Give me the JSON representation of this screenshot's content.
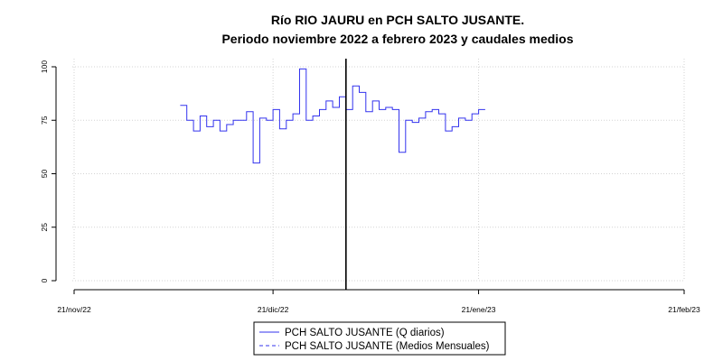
{
  "chart_data": {
    "type": "line",
    "title": "Río RIO JAURU en PCH SALTO JUSANTE.",
    "subtitle": "Periodo noviembre 2022 a febrero 2023 y caudales medios",
    "xlabel": "",
    "ylabel": "",
    "xlim": [
      "2022-11-21",
      "2023-02-21"
    ],
    "ylim": [
      0,
      100
    ],
    "x_ticks": [
      {
        "date": "2022-11-21",
        "label": "21/nov/22"
      },
      {
        "date": "2022-12-21",
        "label": "21/dic/22"
      },
      {
        "date": "2023-01-21",
        "label": "21/ene/23"
      },
      {
        "date": "2023-02-21",
        "label": "21/feb/23"
      }
    ],
    "y_ticks": [
      0,
      25,
      50,
      75,
      100
    ],
    "grid": true,
    "vertical_marker_date": "2023-01-01",
    "legend_position": "bottom",
    "series": [
      {
        "name": "PCH SALTO JUSANTE (Q diarios)",
        "color": "#3333ee",
        "style": "solid",
        "x": [
          "2022-12-07",
          "2022-12-08",
          "2022-12-09",
          "2022-12-10",
          "2022-12-11",
          "2022-12-12",
          "2022-12-13",
          "2022-12-14",
          "2022-12-15",
          "2022-12-16",
          "2022-12-17",
          "2022-12-18",
          "2022-12-19",
          "2022-12-20",
          "2022-12-21",
          "2022-12-22",
          "2022-12-23",
          "2022-12-24",
          "2022-12-25",
          "2022-12-26",
          "2022-12-27",
          "2022-12-28",
          "2022-12-29",
          "2022-12-30",
          "2022-12-31",
          "2023-01-01",
          "2023-01-02",
          "2023-01-03",
          "2023-01-04",
          "2023-01-05",
          "2023-01-06",
          "2023-01-07",
          "2023-01-08",
          "2023-01-09",
          "2023-01-10",
          "2023-01-11",
          "2023-01-12",
          "2023-01-13",
          "2023-01-14",
          "2023-01-15",
          "2023-01-16",
          "2023-01-17",
          "2023-01-18",
          "2023-01-19",
          "2023-01-20",
          "2023-01-21"
        ],
        "y": [
          82,
          75,
          70,
          77,
          72,
          75,
          70,
          73,
          75,
          75,
          79,
          55,
          76,
          75,
          80,
          71,
          75,
          78,
          99,
          75,
          77,
          80,
          84,
          81,
          86,
          80,
          91,
          88,
          79,
          84,
          80,
          81,
          80,
          60,
          75,
          74,
          76,
          79,
          80,
          78,
          70,
          72,
          76,
          75,
          78,
          80
        ]
      },
      {
        "name": "PCH SALTO JUSANTE (Medios Mensuales)",
        "color": "#3333ee",
        "style": "dashed",
        "x": [],
        "y": []
      }
    ]
  }
}
